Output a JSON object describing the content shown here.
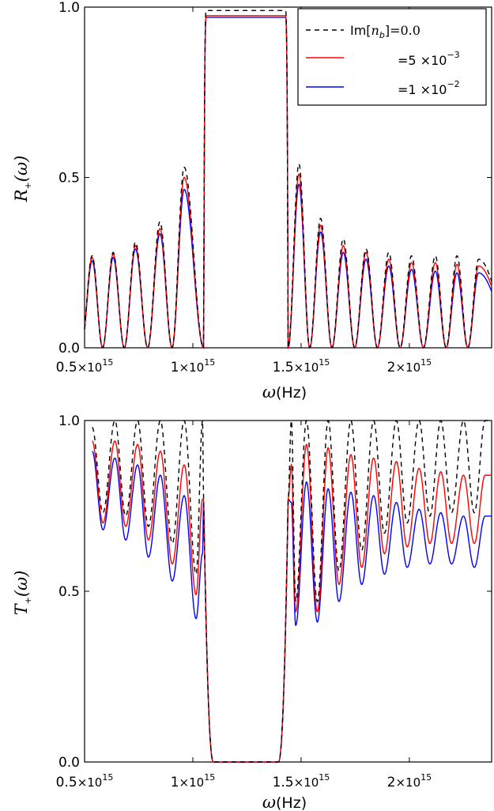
{
  "chart_data": [
    {
      "type": "line",
      "panel": "top",
      "ylabel_main": "R",
      "ylabel_sub": "+",
      "ylabel_rest": "(ω)",
      "xlabel_main": "ω",
      "xlabel_unit": "(Hz)",
      "xlim": [
        500000000000000.0,
        2380000000000000.0
      ],
      "ylim": [
        0,
        1.0
      ],
      "xticks": [
        {
          "value": 500000000000000.0,
          "mantissa": "0.5",
          "times": "×10",
          "exp": "15"
        },
        {
          "value": 1000000000000000.0,
          "mantissa": "1",
          "times": "×10",
          "exp": "15"
        },
        {
          "value": 1500000000000000.0,
          "mantissa": "1.5",
          "times": "×10",
          "exp": "15"
        },
        {
          "value": 2000000000000000.0,
          "mantissa": "2",
          "times": "×10",
          "exp": "15"
        }
      ],
      "yticks": [
        {
          "value": 0.0,
          "label": "0.0"
        },
        {
          "value": 0.5,
          "label": "0.5"
        },
        {
          "value": 1.0,
          "label": "1.0"
        }
      ],
      "legend": {
        "placement": "top-right",
        "entries": [
          {
            "label_prefix": "Im[",
            "label_var": "n",
            "label_sub": "b",
            "label_suffix": "]",
            "label_value": "=0.0",
            "label_exp": "",
            "color": "#000000",
            "dash": "dashed"
          },
          {
            "label_prefix": "",
            "label_var": "",
            "label_sub": "",
            "label_suffix": "",
            "label_value": "=5 ×10",
            "label_exp": "−3",
            "color": "#ff0000",
            "dash": "solid"
          },
          {
            "label_prefix": "",
            "label_var": "",
            "label_sub": "",
            "label_suffix": "",
            "label_value": "=1 ×10",
            "label_exp": "−2",
            "color": "#0000ff",
            "dash": "solid"
          }
        ]
      },
      "series": [
        {
          "name": "Im[n_b]=0.0",
          "color": "#000000",
          "dash": "dashed",
          "stopband": [
            1050000000000000.0,
            1440000000000000.0
          ],
          "band_plateau": 0.99,
          "peaks": [
            {
              "x": 535000000000000.0,
              "y": 0.27
            },
            {
              "x": 632000000000000.0,
              "y": 0.28
            },
            {
              "x": 735000000000000.0,
              "y": 0.31
            },
            {
              "x": 848000000000000.0,
              "y": 0.37
            },
            {
              "x": 960000000000000.0,
              "y": 0.53
            },
            {
              "x": 1490000000000000.0,
              "y": 0.54
            },
            {
              "x": 1590000000000000.0,
              "y": 0.38
            },
            {
              "x": 1695000000000000.0,
              "y": 0.32
            },
            {
              "x": 1800000000000000.0,
              "y": 0.29
            },
            {
              "x": 1905000000000000.0,
              "y": 0.28
            },
            {
              "x": 2010000000000000.0,
              "y": 0.27
            },
            {
              "x": 2120000000000000.0,
              "y": 0.27
            },
            {
              "x": 2220000000000000.0,
              "y": 0.27
            },
            {
              "x": 2320000000000000.0,
              "y": 0.26
            }
          ]
        },
        {
          "name": "=5×10^-3",
          "color": "#ff0000",
          "dash": "solid",
          "stopband": [
            1050000000000000.0,
            1440000000000000.0
          ],
          "band_plateau": 0.975,
          "peaks": [
            {
              "x": 535000000000000.0,
              "y": 0.265
            },
            {
              "x": 632000000000000.0,
              "y": 0.275
            },
            {
              "x": 735000000000000.0,
              "y": 0.3
            },
            {
              "x": 848000000000000.0,
              "y": 0.35
            },
            {
              "x": 960000000000000.0,
              "y": 0.5
            },
            {
              "x": 1490000000000000.0,
              "y": 0.51
            },
            {
              "x": 1590000000000000.0,
              "y": 0.36
            },
            {
              "x": 1695000000000000.0,
              "y": 0.3
            },
            {
              "x": 1800000000000000.0,
              "y": 0.28
            },
            {
              "x": 1905000000000000.0,
              "y": 0.26
            },
            {
              "x": 2010000000000000.0,
              "y": 0.25
            },
            {
              "x": 2120000000000000.0,
              "y": 0.25
            },
            {
              "x": 2220000000000000.0,
              "y": 0.245
            },
            {
              "x": 2320000000000000.0,
              "y": 0.24
            }
          ]
        },
        {
          "name": "=1×10^-2",
          "color": "#0000ff",
          "dash": "solid",
          "stopband": [
            1050000000000000.0,
            1440000000000000.0
          ],
          "band_plateau": 0.97,
          "peaks": [
            {
              "x": 535000000000000.0,
              "y": 0.255
            },
            {
              "x": 632000000000000.0,
              "y": 0.265
            },
            {
              "x": 735000000000000.0,
              "y": 0.29
            },
            {
              "x": 848000000000000.0,
              "y": 0.335
            },
            {
              "x": 960000000000000.0,
              "y": 0.465
            },
            {
              "x": 1490000000000000.0,
              "y": 0.48
            },
            {
              "x": 1590000000000000.0,
              "y": 0.34
            },
            {
              "x": 1695000000000000.0,
              "y": 0.28
            },
            {
              "x": 1800000000000000.0,
              "y": 0.26
            },
            {
              "x": 1905000000000000.0,
              "y": 0.24
            },
            {
              "x": 2010000000000000.0,
              "y": 0.23
            },
            {
              "x": 2120000000000000.0,
              "y": 0.225
            },
            {
              "x": 2220000000000000.0,
              "y": 0.22
            },
            {
              "x": 2320000000000000.0,
              "y": 0.22
            }
          ]
        }
      ]
    },
    {
      "type": "line",
      "panel": "bottom",
      "ylabel_main": "T",
      "ylabel_sub": "+",
      "ylabel_rest": "(ω)",
      "xlabel_main": "ω",
      "xlabel_unit": "(Hz)",
      "xlim": [
        500000000000000.0,
        2380000000000000.0
      ],
      "ylim": [
        0,
        1.0
      ],
      "xticks": [
        {
          "value": 500000000000000.0,
          "mantissa": "0.5",
          "times": "×10",
          "exp": "15"
        },
        {
          "value": 1000000000000000.0,
          "mantissa": "1",
          "times": "×10",
          "exp": "15"
        },
        {
          "value": 1500000000000000.0,
          "mantissa": "1.5",
          "times": "×10",
          "exp": "15"
        },
        {
          "value": 2000000000000000.0,
          "mantissa": "2",
          "times": "×10",
          "exp": "15"
        }
      ],
      "yticks": [
        {
          "value": 0.0,
          "label": "0.0"
        },
        {
          "value": 0.5,
          "label": "0.5"
        },
        {
          "value": 1.0,
          "label": "1.0"
        }
      ],
      "series": [
        {
          "name": "Im[n_b]=0.0",
          "color": "#000000",
          "dash": "dashed",
          "start": 0.98,
          "maxima": 1.0,
          "minima": [
            0.73,
            0.72,
            0.69,
            0.64,
            0.55,
            0.47,
            0.47,
            0.56,
            0.62,
            0.67,
            0.7,
            0.72,
            0.73,
            0.73
          ]
        },
        {
          "name": "=5×10^-3",
          "color": "#ff0000",
          "dash": "solid",
          "start": 0.94,
          "maxima_left": [
            0.94,
            0.93,
            0.91,
            0.87,
            0.77
          ],
          "maxima_right": [
            0.87,
            0.93,
            0.92,
            0.9,
            0.89,
            0.88,
            0.86,
            0.85,
            0.84
          ],
          "minima": [
            0.7,
            0.69,
            0.65,
            0.58,
            0.49,
            0.44,
            0.44,
            0.52,
            0.57,
            0.61,
            0.63,
            0.64,
            0.64,
            0.64
          ]
        },
        {
          "name": "=1×10^-2",
          "color": "#0000ff",
          "dash": "solid",
          "start": 0.91,
          "maxima_left": [
            0.89,
            0.87,
            0.84,
            0.78,
            0.61
          ],
          "maxima_right": [
            0.76,
            0.82,
            0.8,
            0.79,
            0.78,
            0.76,
            0.74,
            0.73,
            0.72
          ],
          "minima": [
            0.68,
            0.65,
            0.6,
            0.53,
            0.42,
            0.4,
            0.41,
            0.47,
            0.52,
            0.55,
            0.57,
            0.58,
            0.58,
            0.57
          ]
        }
      ]
    }
  ]
}
